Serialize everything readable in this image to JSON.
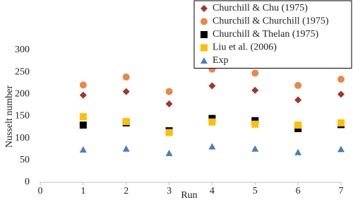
{
  "chart_data": {
    "type": "scatter",
    "y_label": "Nusselt number",
    "x_label": "Run",
    "x": [
      1,
      2,
      3,
      4,
      5,
      6,
      7
    ],
    "series": [
      {
        "name": "Churchill & Chu (1975)",
        "color": "#a3362c",
        "marker": "diamond",
        "values": [
          198,
          206,
          178,
          219,
          209,
          187,
          200
        ]
      },
      {
        "name": "Churchill & Churchill (1975)",
        "color": "#e8884b",
        "marker": "circle",
        "values": [
          221,
          239,
          206,
          257,
          248,
          220,
          234
        ]
      },
      {
        "name": "Churchill & Thelan (1975)",
        "color": "#000000",
        "marker": "square",
        "values": [
          130,
          135,
          117,
          145,
          140,
          122,
          131
        ]
      },
      {
        "name": "Liu et al. (2006)",
        "color": "#ffc000",
        "marker": "square",
        "values": [
          149,
          138,
          113,
          137,
          132,
          130,
          135
        ]
      },
      {
        "name": "Exp",
        "color": "#4a7ebb",
        "marker": "triangle",
        "values": [
          74,
          76,
          66,
          81,
          76,
          68,
          75
        ]
      }
    ],
    "xlim": [
      0,
      7
    ],
    "xticks": [
      0,
      1,
      2,
      3,
      4,
      5,
      6,
      7
    ],
    "ylim": [
      0,
      300
    ],
    "yticks": [
      0,
      50,
      100,
      150,
      200,
      250,
      300
    ],
    "grid": false,
    "legend_position": "top-right"
  }
}
